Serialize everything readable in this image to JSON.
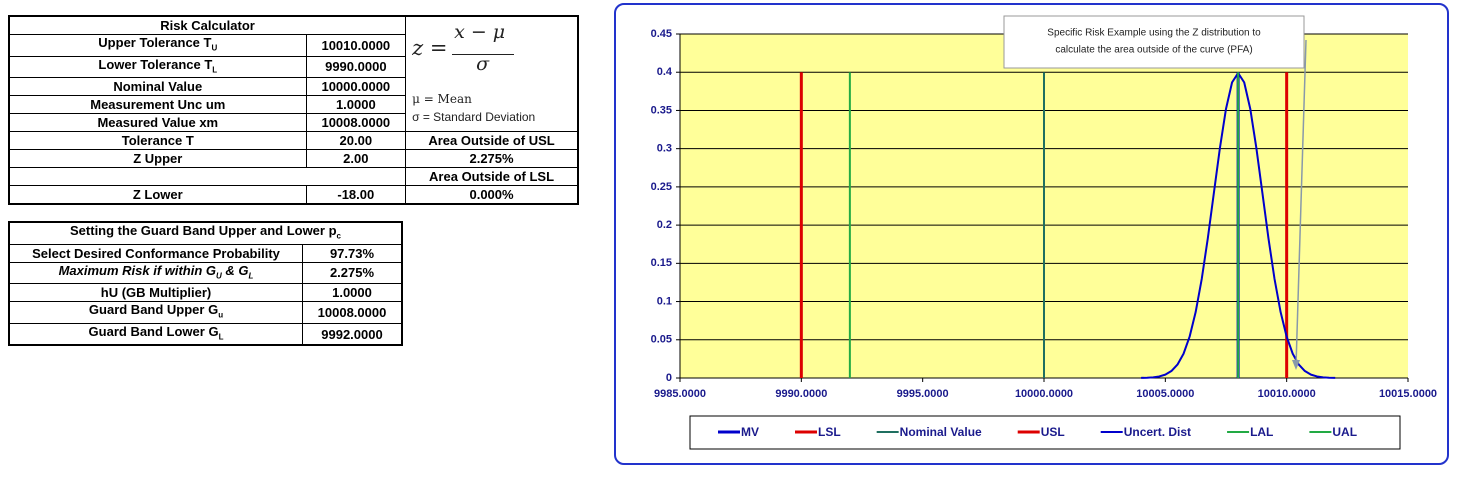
{
  "risk_calculator": {
    "title": "Risk Calculator",
    "formula": {
      "lhs": "z =",
      "numerator": "x − μ",
      "denominator": "σ",
      "mu_def": "μ = Mean",
      "sigma_def": "σ = Standard Deviation"
    },
    "rows": [
      {
        "label": [
          "Upper Tolerance T",
          "U"
        ],
        "value": "10010.0000"
      },
      {
        "label": [
          "Lower Tolerance T",
          "L"
        ],
        "value": "9990.0000"
      },
      {
        "label": [
          "Nominal Value"
        ],
        "value": "10000.0000"
      },
      {
        "label": [
          "Measurement Unc um"
        ],
        "value": "1.0000"
      },
      {
        "label": [
          "Measured Value xm"
        ],
        "value": "10008.0000"
      },
      {
        "label": [
          "Tolerance T"
        ],
        "value": "20.00",
        "note": "Area Outside of USL"
      },
      {
        "label": [
          "Z Upper"
        ],
        "value": "2.00",
        "note": "2.275%"
      },
      {
        "note": "Area Outside of LSL"
      },
      {
        "label": [
          "Z Lower"
        ],
        "value": "-18.00",
        "note": "0.000%"
      }
    ]
  },
  "guard_band": {
    "title": [
      "Setting the Guard Band Upper and Lower  p",
      "c"
    ],
    "rows": [
      {
        "label": [
          "Select Desired Conformance Probability"
        ],
        "value": "97.73%"
      },
      {
        "label": [
          "Maximum Risk if within G",
          "U",
          " & G",
          "L"
        ],
        "italic": true,
        "value": "2.275%"
      },
      {
        "label": [
          "hU (GB Multiplier)"
        ],
        "value": "1.0000"
      },
      {
        "label": [
          "Guard Band Upper G",
          "u"
        ],
        "value": "10008.0000"
      },
      {
        "label": [
          "Guard Band Lower G",
          "L"
        ],
        "value": "9992.0000"
      }
    ]
  },
  "chart_data": {
    "type": "line",
    "annotation": [
      "Specific Risk Example using the Z distribution to",
      "calculate the area outside of the curve  (PFA)"
    ],
    "xlim": [
      9985,
      10015
    ],
    "xticks": [
      {
        "value": 9985,
        "label": "9985.0000"
      },
      {
        "value": 9990,
        "label": "9990.0000"
      },
      {
        "value": 9995,
        "label": "9995.0000"
      },
      {
        "value": 10000,
        "label": "10000.0000"
      },
      {
        "value": 10005,
        "label": "10005.0000"
      },
      {
        "value": 10010,
        "label": "10010.0000"
      },
      {
        "value": 10015,
        "label": "10015.0000"
      }
    ],
    "ylim": [
      0,
      0.45
    ],
    "yticks": [
      0,
      0.05,
      0.1,
      0.15,
      0.2,
      0.25,
      0.3,
      0.35,
      0.4,
      0.45
    ],
    "grid": true,
    "legend": "bottom",
    "series": [
      {
        "name": "MV",
        "color": "#0000cc",
        "line_width": 3,
        "x": [
          10008,
          10008
        ],
        "values": [
          0,
          0.4
        ]
      },
      {
        "name": "LSL",
        "color": "#dd0000",
        "line_width": 3,
        "x": [
          9990,
          9990
        ],
        "values": [
          0,
          0.4
        ]
      },
      {
        "name": "Nominal Value",
        "color": "#1f6f60",
        "line_width": 2,
        "x": [
          10000,
          10000
        ],
        "values": [
          0,
          0.4
        ]
      },
      {
        "name": "USL",
        "color": "#dd0000",
        "line_width": 3,
        "x": [
          10010,
          10010
        ],
        "values": [
          0,
          0.4
        ]
      },
      {
        "name": "Uncert. Dist",
        "color": "#0000cc",
        "line_width": 2,
        "x": [
          10004,
          10004.25,
          10004.5,
          10004.75,
          10005,
          10005.25,
          10005.5,
          10005.75,
          10006,
          10006.25,
          10006.5,
          10006.75,
          10007,
          10007.25,
          10007.5,
          10007.75,
          10008,
          10008.25,
          10008.5,
          10008.75,
          10009,
          10009.25,
          10009.5,
          10009.75,
          10010,
          10010.25,
          10010.5,
          10010.75,
          10011,
          10011.25,
          10011.5,
          10011.75,
          10012
        ],
        "values": [
          0.0001,
          0.0004,
          0.0009,
          0.002,
          0.0044,
          0.0091,
          0.0175,
          0.0317,
          0.054,
          0.0863,
          0.1295,
          0.1826,
          0.242,
          0.3011,
          0.3521,
          0.3867,
          0.3989,
          0.3867,
          0.3521,
          0.3011,
          0.242,
          0.1826,
          0.1295,
          0.0863,
          0.054,
          0.0317,
          0.0175,
          0.0091,
          0.0044,
          0.002,
          0.0009,
          0.0004,
          0.0001
        ]
      },
      {
        "name": "LAL",
        "color": "#22aa44",
        "line_width": 2,
        "x": [
          9992,
          9992
        ],
        "values": [
          0,
          0.4
        ]
      },
      {
        "name": "UAL",
        "color": "#22aa44",
        "line_width": 2,
        "x": [
          10008,
          10008
        ],
        "values": [
          0,
          0.4
        ]
      }
    ]
  }
}
